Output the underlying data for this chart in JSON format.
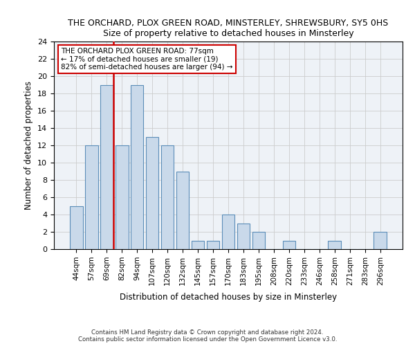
{
  "title": "THE ORCHARD, PLOX GREEN ROAD, MINSTERLEY, SHREWSBURY, SY5 0HS",
  "subtitle": "Size of property relative to detached houses in Minsterley",
  "xlabel": "Distribution of detached houses by size in Minsterley",
  "ylabel": "Number of detached properties",
  "categories": [
    "44sqm",
    "57sqm",
    "69sqm",
    "82sqm",
    "94sqm",
    "107sqm",
    "120sqm",
    "132sqm",
    "145sqm",
    "157sqm",
    "170sqm",
    "183sqm",
    "195sqm",
    "208sqm",
    "220sqm",
    "233sqm",
    "246sqm",
    "258sqm",
    "271sqm",
    "283sqm",
    "296sqm"
  ],
  "values": [
    5,
    12,
    19,
    12,
    19,
    13,
    12,
    9,
    1,
    1,
    4,
    3,
    2,
    0,
    1,
    0,
    0,
    1,
    0,
    0,
    2
  ],
  "bar_color": "#c9d9ea",
  "bar_edge_color": "#5b8db8",
  "vline_x_index": 2,
  "vline_color": "#cc0000",
  "annotation_line1": "THE ORCHARD PLOX GREEN ROAD: 77sqm",
  "annotation_line2": "← 17% of detached houses are smaller (19)",
  "annotation_line3": "82% of semi-detached houses are larger (94) →",
  "annotation_box_edgecolor": "#cc0000",
  "ylim": [
    0,
    24
  ],
  "yticks": [
    0,
    2,
    4,
    6,
    8,
    10,
    12,
    14,
    16,
    18,
    20,
    22,
    24
  ],
  "grid_color": "#cccccc",
  "bg_color": "#eef2f7",
  "footer_line1": "Contains HM Land Registry data © Crown copyright and database right 2024.",
  "footer_line2": "Contains public sector information licensed under the Open Government Licence v3.0."
}
